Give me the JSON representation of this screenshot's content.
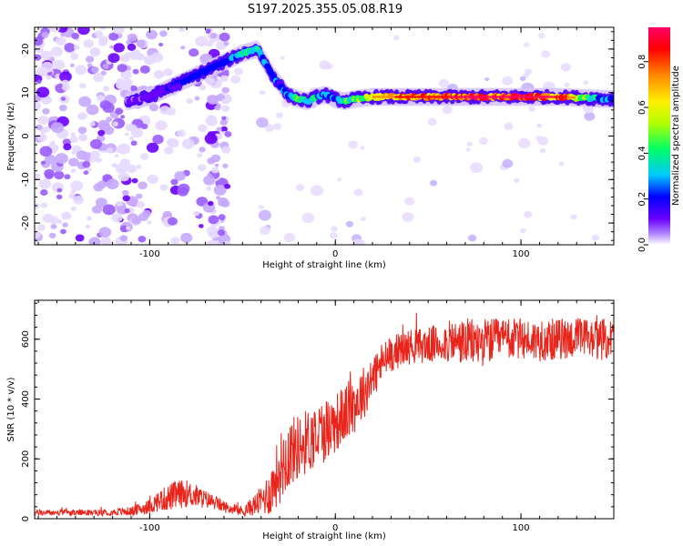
{
  "title": "S197.2025.355.05.08.R19",
  "chart_data": [
    {
      "type": "heatmap",
      "xlabel": "Height of straight line (km)",
      "ylabel": "Frequency (Hz)",
      "xlim": [
        -162,
        150
      ],
      "ylim": [
        -25,
        25
      ],
      "xticks": [
        -100,
        0,
        100
      ],
      "yticks": [
        -20,
        -10,
        0,
        10,
        20
      ],
      "colorbar": {
        "label": "Normalized spectral amplitude",
        "range": [
          0.0,
          0.95
        ],
        "ticks": [
          0.0,
          0.2,
          0.4,
          0.6,
          0.8
        ],
        "tick_labels": [
          "0.0",
          "0.2",
          "0.4",
          "0.6",
          "0.8"
        ],
        "colors": [
          "#ffffff",
          "#b388ff",
          "#6a00ff",
          "#0000ff",
          "#00c8ff",
          "#00ff66",
          "#b4ff00",
          "#ffee00",
          "#ff8800",
          "#ff0000",
          "#ff0066"
        ]
      },
      "ridge": {
        "x": [
          -112,
          -100,
          -90,
          -80,
          -70,
          -60,
          -50,
          -42,
          -38,
          -34,
          -30,
          -26,
          -20,
          -15,
          -10,
          -5,
          0,
          5,
          10,
          20,
          40,
          80,
          120,
          148
        ],
        "freq": [
          8,
          9,
          11,
          13,
          15,
          17,
          19,
          20,
          17,
          14,
          12,
          9.5,
          8.5,
          8,
          9,
          9.5,
          8.5,
          8,
          8.5,
          9,
          9,
          9,
          9,
          8.5
        ],
        "amplitude": [
          0.15,
          0.2,
          0.25,
          0.3,
          0.3,
          0.3,
          0.45,
          0.5,
          0.4,
          0.35,
          0.3,
          0.35,
          0.5,
          0.45,
          0.4,
          0.35,
          0.35,
          0.5,
          0.55,
          0.7,
          0.8,
          0.9,
          0.85,
          0.3
        ]
      }
    },
    {
      "type": "line",
      "xlabel": "Height of straight line (km)",
      "ylabel": "SNR (10 * v/v)",
      "xlim": [
        -162,
        150
      ],
      "ylim": [
        0,
        730
      ],
      "xticks": [
        -100,
        0,
        100
      ],
      "yticks": [
        0,
        200,
        400,
        600
      ],
      "series": [
        {
          "name": "SNR",
          "color": "#e8241b",
          "x": [
            -162,
            -150,
            -140,
            -130,
            -120,
            -110,
            -100,
            -95,
            -90,
            -85,
            -80,
            -75,
            -70,
            -65,
            -60,
            -55,
            -50,
            -45,
            -40,
            -35,
            -30,
            -25,
            -20,
            -15,
            -10,
            -5,
            0,
            5,
            10,
            15,
            20,
            25,
            30,
            35,
            40,
            50,
            60,
            70,
            80,
            90,
            100,
            110,
            120,
            130,
            140,
            150
          ],
          "mean": [
            20,
            20,
            20,
            20,
            22,
            25,
            40,
            60,
            70,
            80,
            85,
            75,
            65,
            55,
            40,
            30,
            25,
            40,
            60,
            90,
            170,
            220,
            240,
            260,
            280,
            300,
            320,
            350,
            380,
            420,
            470,
            520,
            550,
            565,
            575,
            580,
            590,
            590,
            590,
            600,
            600,
            595,
            600,
            605,
            600,
            600
          ],
          "amp": [
            10,
            10,
            10,
            10,
            12,
            15,
            25,
            35,
            45,
            50,
            45,
            40,
            30,
            25,
            20,
            15,
            20,
            30,
            50,
            80,
            120,
            120,
            110,
            110,
            110,
            110,
            100,
            100,
            100,
            90,
            80,
            70,
            60,
            60,
            60,
            60,
            70,
            80,
            80,
            70,
            70,
            70,
            70,
            70,
            70,
            70
          ]
        }
      ]
    }
  ]
}
